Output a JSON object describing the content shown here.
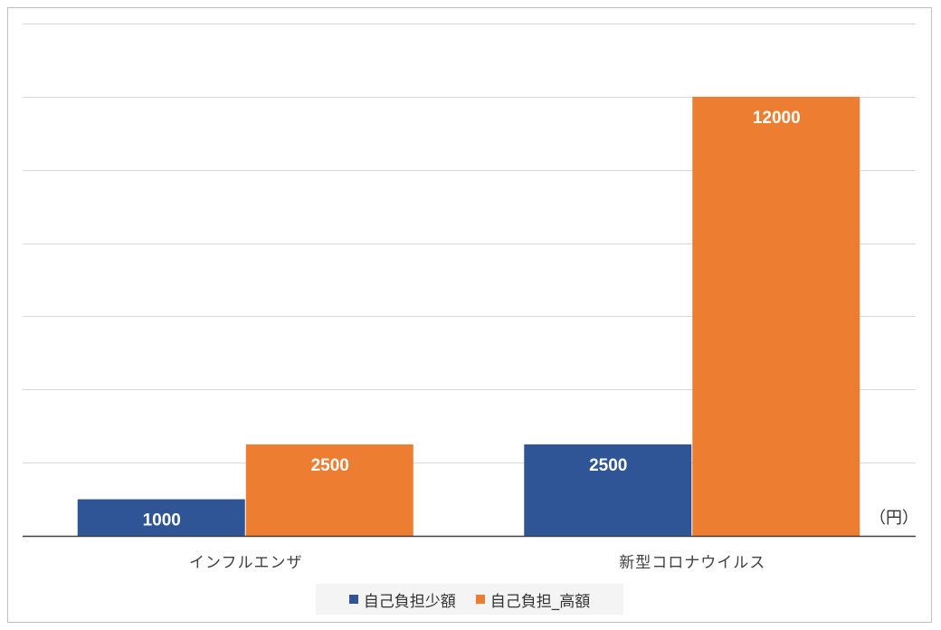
{
  "chart_data": {
    "type": "bar",
    "categories": [
      "インフルエンザ",
      "新型コロナウイルス"
    ],
    "series": [
      {
        "name": "自己負担少額",
        "values": [
          1000,
          2500
        ],
        "color": "#2f5597"
      },
      {
        "name": "自己負担_高額",
        "values": [
          2500,
          12000
        ],
        "color": "#ed7d31"
      }
    ],
    "ylim": [
      0,
      14000
    ],
    "ytick_step": 2000,
    "unit_label": "（円）",
    "grid": true,
    "legend": "bottom"
  }
}
